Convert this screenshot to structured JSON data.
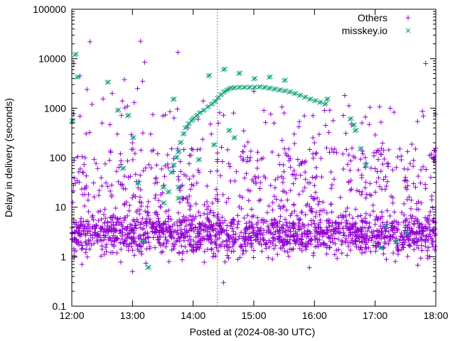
{
  "chart_data": {
    "type": "scatter",
    "xlabel": "Posted at (2024-08-30 UTC)",
    "ylabel": "Delay in delivery (seconds)",
    "x_range": [
      "12:00",
      "18:00"
    ],
    "x_ticks": [
      "12:00",
      "13:00",
      "14:00",
      "15:00",
      "16:00",
      "17:00",
      "18:00"
    ],
    "y_scale": "log",
    "y_range": [
      0.1,
      100000
    ],
    "y_ticks": [
      "0.1",
      "1",
      "10",
      "100",
      "1000",
      "10000",
      "100000"
    ],
    "grid": false,
    "legend_placement": "top-right",
    "vertical_marker": {
      "x": "14:24",
      "style": "dotted",
      "color": "#888888"
    },
    "series": [
      {
        "name": "Others",
        "marker": "+",
        "color": "#9400d3",
        "summary": {
          "approx_points": 2000,
          "bulk_y_range": [
            1,
            10
          ],
          "typical_y": 3,
          "sparse_tail_y_range": [
            10,
            30000
          ]
        },
        "points": [
          [
            "12:00",
            500
          ],
          [
            "12:02",
            8000
          ],
          [
            "12:08",
            4500
          ],
          [
            "12:15",
            2400
          ],
          [
            "12:18",
            22000
          ],
          [
            "12:20",
            1200
          ],
          [
            "12:30",
            500
          ],
          [
            "12:40",
            2000
          ],
          [
            "12:45",
            300
          ],
          [
            "12:50",
            1400
          ],
          [
            "12:52",
            3800
          ],
          [
            "12:55",
            1100
          ],
          [
            "13:00",
            200
          ],
          [
            "13:05",
            2500
          ],
          [
            "13:08",
            22500
          ],
          [
            "13:10",
            3500
          ],
          [
            "13:12",
            8500
          ],
          [
            "13:18",
            300
          ],
          [
            "13:25",
            120
          ],
          [
            "13:30",
            700
          ],
          [
            "13:45",
            13500
          ],
          [
            "13:55",
            400
          ],
          [
            "14:05",
            600
          ],
          [
            "14:10",
            1400
          ],
          [
            "14:18",
            300
          ],
          [
            "14:25",
            500
          ],
          [
            "14:40",
            800
          ],
          [
            "14:50",
            350
          ],
          [
            "15:00",
            2200
          ],
          [
            "15:10",
            900
          ],
          [
            "15:20",
            500
          ],
          [
            "15:30",
            800
          ],
          [
            "15:40",
            300
          ],
          [
            "15:50",
            700
          ],
          [
            "16:00",
            200
          ],
          [
            "16:10",
            900
          ],
          [
            "16:20",
            150
          ],
          [
            "16:30",
            1800
          ],
          [
            "16:40",
            100
          ],
          [
            "16:55",
            30
          ],
          [
            "17:00",
            60
          ],
          [
            "17:15",
            1000
          ],
          [
            "17:30",
            40
          ],
          [
            "17:40",
            150
          ],
          [
            "17:50",
            8000
          ],
          [
            "17:55",
            40
          ],
          [
            "14:30",
            0.3
          ],
          [
            "13:00",
            0.5
          ],
          [
            "12:10",
            0.7
          ],
          [
            "15:55",
            0.6
          ],
          [
            "17:20",
            0.8
          ],
          [
            "16:20",
            1.1
          ]
        ]
      },
      {
        "name": "misskey.io",
        "marker": "x",
        "color": "#009e73",
        "points": [
          [
            "12:00",
            550
          ],
          [
            "12:03",
            12000
          ],
          [
            "12:05",
            4200
          ],
          [
            "12:35",
            3300
          ],
          [
            "12:50",
            60
          ],
          [
            "12:55",
            700
          ],
          [
            "13:00",
            250
          ],
          [
            "13:05",
            30
          ],
          [
            "13:10",
            2
          ],
          [
            "13:30",
            12
          ],
          [
            "13:35",
            20
          ],
          [
            "13:40",
            1500
          ],
          [
            "13:45",
            25
          ],
          [
            "13:30",
            25
          ],
          [
            "13:45",
            15
          ],
          [
            "13:38",
            50
          ],
          [
            "13:40",
            70
          ],
          [
            "13:43",
            100
          ],
          [
            "13:45",
            130
          ],
          [
            "13:47",
            200
          ],
          [
            "13:50",
            300
          ],
          [
            "13:52",
            400
          ],
          [
            "13:55",
            480
          ],
          [
            "13:58",
            560
          ],
          [
            "14:00",
            620
          ],
          [
            "14:03",
            700
          ],
          [
            "14:06",
            800
          ],
          [
            "14:10",
            900
          ],
          [
            "14:14",
            1050
          ],
          [
            "14:18",
            1200
          ],
          [
            "14:21",
            1350
          ],
          [
            "14:24",
            1600
          ],
          [
            "14:27",
            1850
          ],
          [
            "14:30",
            2100
          ],
          [
            "14:33",
            2300
          ],
          [
            "14:36",
            2500
          ],
          [
            "14:40",
            2550
          ],
          [
            "14:45",
            2600
          ],
          [
            "14:50",
            2600
          ],
          [
            "14:55",
            2600
          ],
          [
            "15:00",
            2600
          ],
          [
            "15:05",
            2650
          ],
          [
            "15:10",
            2600
          ],
          [
            "15:15",
            2500
          ],
          [
            "15:20",
            2400
          ],
          [
            "15:25",
            2300
          ],
          [
            "15:30",
            2200
          ],
          [
            "15:35",
            2100
          ],
          [
            "15:40",
            1950
          ],
          [
            "15:45",
            1800
          ],
          [
            "15:50",
            1650
          ],
          [
            "15:55",
            1500
          ],
          [
            "16:00",
            1400
          ],
          [
            "16:05",
            1300
          ],
          [
            "16:10",
            1200
          ],
          [
            "16:12",
            1500
          ],
          [
            "16:35",
            600
          ],
          [
            "16:38",
            450
          ],
          [
            "16:40",
            350
          ],
          [
            "16:45",
            150
          ],
          [
            "16:50",
            70
          ],
          [
            "17:05",
            1.5
          ],
          [
            "17:10",
            4
          ],
          [
            "17:20",
            2
          ],
          [
            "17:30",
            3
          ],
          [
            "14:15",
            4500
          ],
          [
            "14:30",
            6000
          ],
          [
            "14:45",
            5000
          ],
          [
            "15:00",
            3900
          ],
          [
            "15:15",
            4200
          ],
          [
            "15:30",
            3600
          ],
          [
            "14:35",
            350
          ],
          [
            "14:40",
            250
          ],
          [
            "14:20",
            180
          ],
          [
            "14:05",
            90
          ],
          [
            "13:15",
            0.6
          ],
          [
            "12:45",
            900
          ]
        ]
      }
    ]
  }
}
